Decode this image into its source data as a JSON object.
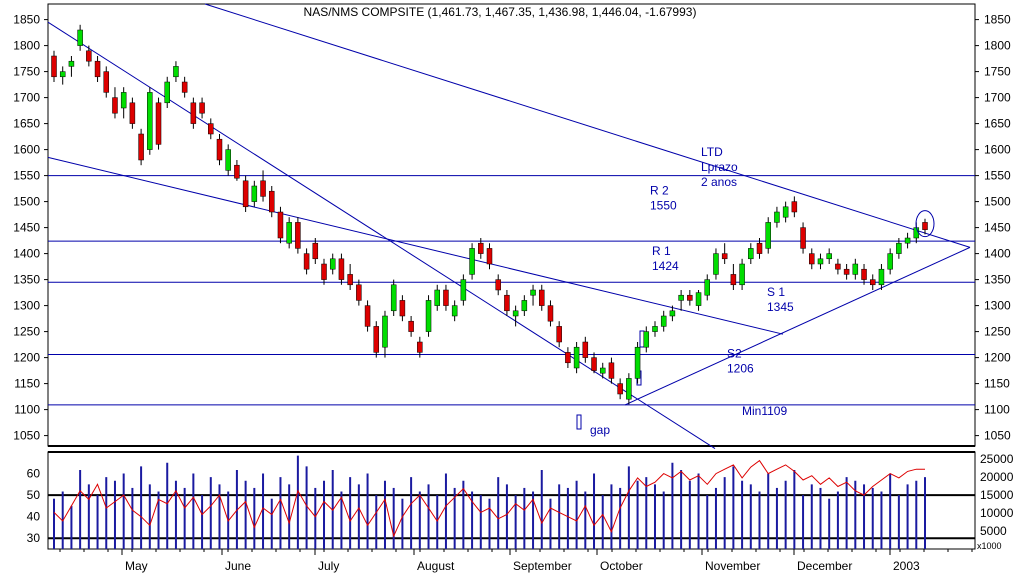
{
  "chart_data": [
    {
      "type": "candlestick",
      "title": "NAS/NMS COMPSITE (1,461.73, 1,467.35, 1,436.98, 1,446.04, -1.67993)",
      "ylim": [
        1030,
        1880
      ],
      "y_ticks": [
        1050,
        1100,
        1150,
        1200,
        1250,
        1300,
        1350,
        1400,
        1450,
        1500,
        1550,
        1600,
        1650,
        1700,
        1750,
        1800,
        1850
      ],
      "x_labels": [
        "May",
        "June",
        "July",
        "August",
        "September",
        "October",
        "November",
        "December",
        "2003"
      ],
      "grid": false,
      "up_color": "#00dd00",
      "down_color": "#dd0000",
      "line_color": "#0000aa",
      "horizontal_levels": [
        {
          "label": "R 2",
          "value": 1550,
          "value_label": "1550"
        },
        {
          "label": "R 1",
          "value": 1424,
          "value_label": "1424"
        },
        {
          "label": "S 1",
          "value": 1345,
          "value_label": "1345"
        },
        {
          "label": "S2",
          "value": 1206,
          "value_label": "1206"
        },
        {
          "label": "Min1109",
          "value": 1109
        }
      ],
      "annotations": [
        "LTD",
        "Lprazo",
        "2 anos",
        "gap"
      ],
      "candles": [
        [
          1780,
          1790,
          1730,
          1740
        ],
        [
          1740,
          1760,
          1725,
          1750
        ],
        [
          1760,
          1780,
          1740,
          1770
        ],
        [
          1800,
          1840,
          1790,
          1830
        ],
        [
          1790,
          1800,
          1760,
          1770
        ],
        [
          1770,
          1780,
          1730,
          1740
        ],
        [
          1750,
          1760,
          1700,
          1710
        ],
        [
          1700,
          1720,
          1660,
          1670
        ],
        [
          1680,
          1720,
          1660,
          1710
        ],
        [
          1690,
          1700,
          1640,
          1650
        ],
        [
          1630,
          1640,
          1570,
          1580
        ],
        [
          1600,
          1720,
          1590,
          1710
        ],
        [
          1690,
          1700,
          1600,
          1610
        ],
        [
          1690,
          1740,
          1680,
          1730
        ],
        [
          1740,
          1770,
          1730,
          1760
        ],
        [
          1730,
          1740,
          1700,
          1710
        ],
        [
          1690,
          1700,
          1640,
          1650
        ],
        [
          1690,
          1700,
          1660,
          1670
        ],
        [
          1650,
          1660,
          1620,
          1630
        ],
        [
          1620,
          1630,
          1570,
          1580
        ],
        [
          1560,
          1610,
          1550,
          1600
        ],
        [
          1570,
          1580,
          1540,
          1545
        ],
        [
          1540,
          1550,
          1480,
          1490
        ],
        [
          1500,
          1540,
          1490,
          1530
        ],
        [
          1540,
          1560,
          1500,
          1510
        ],
        [
          1520,
          1530,
          1470,
          1480
        ],
        [
          1480,
          1490,
          1420,
          1430
        ],
        [
          1420,
          1470,
          1410,
          1460
        ],
        [
          1460,
          1470,
          1400,
          1410
        ],
        [
          1400,
          1410,
          1360,
          1370
        ],
        [
          1420,
          1430,
          1380,
          1390
        ],
        [
          1380,
          1390,
          1340,
          1350
        ],
        [
          1370,
          1400,
          1360,
          1390
        ],
        [
          1390,
          1400,
          1340,
          1350
        ],
        [
          1360,
          1380,
          1330,
          1340
        ],
        [
          1340,
          1350,
          1300,
          1310
        ],
        [
          1300,
          1310,
          1250,
          1260
        ],
        [
          1260,
          1270,
          1200,
          1210
        ],
        [
          1220,
          1290,
          1200,
          1280
        ],
        [
          1290,
          1350,
          1280,
          1340
        ],
        [
          1310,
          1320,
          1270,
          1280
        ],
        [
          1270,
          1280,
          1240,
          1250
        ],
        [
          1230,
          1240,
          1200,
          1210
        ],
        [
          1250,
          1320,
          1240,
          1310
        ],
        [
          1300,
          1340,
          1290,
          1330
        ],
        [
          1330,
          1340,
          1290,
          1300
        ],
        [
          1280,
          1310,
          1270,
          1300
        ],
        [
          1310,
          1360,
          1300,
          1350
        ],
        [
          1360,
          1420,
          1350,
          1410
        ],
        [
          1420,
          1430,
          1390,
          1400
        ],
        [
          1410,
          1420,
          1370,
          1380
        ],
        [
          1350,
          1360,
          1320,
          1330
        ],
        [
          1320,
          1330,
          1280,
          1290
        ],
        [
          1280,
          1300,
          1260,
          1290
        ],
        [
          1290,
          1320,
          1280,
          1310
        ],
        [
          1320,
          1340,
          1300,
          1330
        ],
        [
          1330,
          1340,
          1290,
          1300
        ],
        [
          1300,
          1310,
          1260,
          1270
        ],
        [
          1260,
          1270,
          1220,
          1230
        ],
        [
          1210,
          1220,
          1180,
          1190
        ],
        [
          1180,
          1230,
          1170,
          1220
        ],
        [
          1230,
          1240,
          1190,
          1200
        ],
        [
          1200,
          1210,
          1170,
          1175
        ],
        [
          1170,
          1190,
          1160,
          1180
        ],
        [
          1190,
          1200,
          1150,
          1160
        ],
        [
          1150,
          1160,
          1120,
          1130
        ],
        [
          1120,
          1170,
          1110,
          1160
        ],
        [
          1160,
          1230,
          1150,
          1220
        ],
        [
          1220,
          1260,
          1210,
          1250
        ],
        [
          1250,
          1270,
          1240,
          1260
        ],
        [
          1260,
          1290,
          1250,
          1280
        ],
        [
          1280,
          1300,
          1270,
          1290
        ],
        [
          1310,
          1330,
          1290,
          1320
        ],
        [
          1320,
          1330,
          1300,
          1310
        ],
        [
          1300,
          1330,
          1290,
          1325
        ],
        [
          1320,
          1360,
          1310,
          1350
        ],
        [
          1360,
          1410,
          1350,
          1400
        ],
        [
          1400,
          1420,
          1380,
          1390
        ],
        [
          1360,
          1380,
          1330,
          1340
        ],
        [
          1340,
          1390,
          1330,
          1380
        ],
        [
          1390,
          1420,
          1380,
          1410
        ],
        [
          1420,
          1430,
          1390,
          1400
        ],
        [
          1410,
          1470,
          1400,
          1460
        ],
        [
          1460,
          1490,
          1450,
          1480
        ],
        [
          1470,
          1500,
          1460,
          1490
        ],
        [
          1500,
          1510,
          1470,
          1480
        ],
        [
          1450,
          1460,
          1400,
          1410
        ],
        [
          1400,
          1410,
          1370,
          1380
        ],
        [
          1380,
          1400,
          1370,
          1390
        ],
        [
          1390,
          1410,
          1380,
          1400
        ],
        [
          1380,
          1390,
          1360,
          1370
        ],
        [
          1370,
          1380,
          1350,
          1360
        ],
        [
          1360,
          1390,
          1350,
          1380
        ],
        [
          1370,
          1380,
          1340,
          1350
        ],
        [
          1350,
          1360,
          1330,
          1340
        ],
        [
          1340,
          1380,
          1330,
          1370
        ],
        [
          1370,
          1410,
          1360,
          1400
        ],
        [
          1400,
          1430,
          1390,
          1420
        ],
        [
          1420,
          1440,
          1410,
          1430
        ],
        [
          1430,
          1460,
          1420,
          1450
        ],
        [
          1460,
          1467,
          1437,
          1446
        ]
      ],
      "volume_axis_ticks": [
        5000,
        10000,
        15000,
        20000,
        25000
      ],
      "volume_unit": "x1000",
      "volume": [
        14000,
        16000,
        12000,
        22000,
        18000,
        15000,
        20000,
        19000,
        21000,
        17000,
        23000,
        18000,
        16000,
        24000,
        19000,
        17000,
        21000,
        15000,
        20000,
        18000,
        16000,
        22000,
        19000,
        17000,
        21000,
        14000,
        20000,
        18000,
        26000,
        23000,
        17000,
        19000,
        22000,
        16000,
        20000,
        18000,
        21000,
        15000,
        19000,
        17000,
        14000,
        20000,
        16000,
        18000,
        15000,
        21000,
        17000,
        19000,
        16000,
        15000,
        14000,
        20000,
        18000,
        15000,
        17000,
        16000,
        22000,
        14000,
        18000,
        17000,
        19000,
        16000,
        21000,
        15000,
        18000,
        17000,
        23000,
        19000,
        20000,
        18000,
        16000,
        24000,
        22000,
        19000,
        21000,
        15000,
        17000,
        20000,
        23000,
        19000,
        18000,
        16000,
        21000,
        17000,
        19000,
        22000,
        15000,
        18000,
        17000,
        14000,
        16000,
        20000,
        19000,
        18000,
        17000,
        16000,
        21000,
        15000,
        18000,
        19000,
        20000
      ],
      "oscillator": {
        "y_ticks": [
          30,
          40,
          50,
          60
        ],
        "levels": [
          30,
          50
        ],
        "values": [
          42,
          38,
          45,
          52,
          48,
          55,
          44,
          47,
          50,
          43,
          40,
          36,
          48,
          46,
          52,
          44,
          49,
          41,
          45,
          50,
          38,
          43,
          47,
          35,
          44,
          41,
          48,
          37,
          52,
          45,
          40,
          47,
          43,
          49,
          38,
          44,
          36,
          42,
          48,
          31,
          40,
          46,
          50,
          44,
          38,
          45,
          49,
          53,
          47,
          42,
          44,
          39,
          41,
          46,
          43,
          48,
          37,
          44,
          42,
          40,
          38,
          45,
          36,
          41,
          33,
          44,
          52,
          58,
          54,
          56,
          60,
          58,
          61,
          57,
          59,
          55,
          60,
          62,
          64,
          58,
          63,
          66,
          60,
          62,
          64,
          61,
          57,
          59,
          55,
          58,
          54,
          56,
          52,
          50,
          54,
          57,
          60,
          58,
          61,
          62,
          62
        ]
      }
    }
  ]
}
